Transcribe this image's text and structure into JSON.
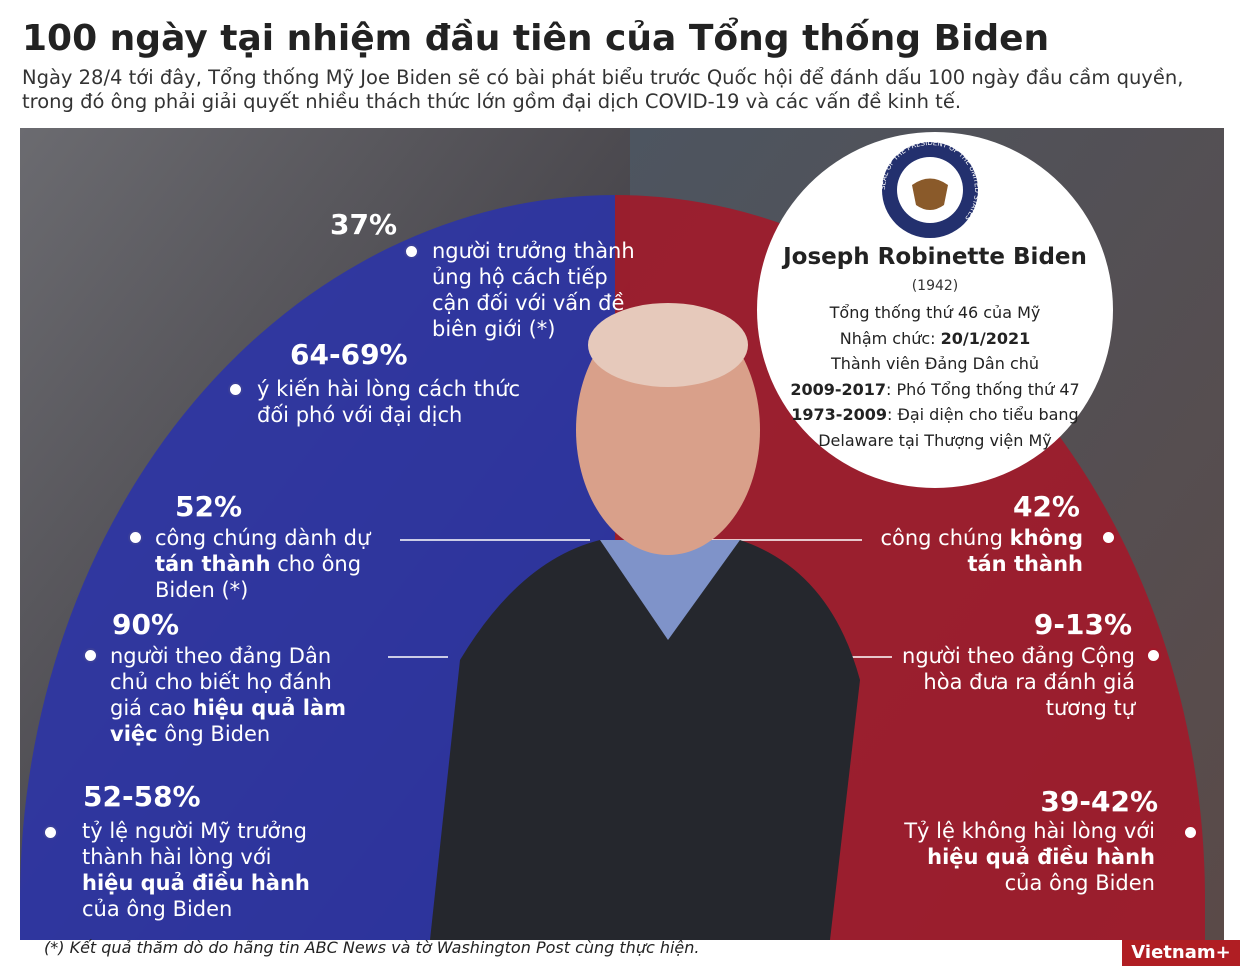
{
  "header": {
    "title": "100 ngày tại nhiệm đầu tiên của Tổng thống Biden",
    "intro": "Ngày 28/4 tới đây, Tổng thống Mỹ Joe Biden sẽ có bài phát biểu trước Quốc hội để đánh dấu 100 ngày đầu cầm quyền, trong đó ông phải giải quyết nhiều thách thức lớn gồm đại dịch COVID-19 và các vấn đề kinh tế."
  },
  "left_items": [
    {
      "value": "37%",
      "parts": [
        {
          "text": "người trưởng thành ủng hộ cách tiếp cận đối với vấn đề biên giới (*)"
        }
      ]
    },
    {
      "value": "64-69%",
      "parts": [
        {
          "text": "ý kiến hài lòng cách thức đối phó với đại dịch"
        }
      ]
    },
    {
      "value": "52%",
      "parts": [
        {
          "text": "công chúng dành dự "
        },
        {
          "text": "tán thành",
          "bold": true
        },
        {
          "text": " cho ông Biden (*)"
        }
      ]
    },
    {
      "value": "90%",
      "parts": [
        {
          "text": "người theo đảng Dân chủ cho biết họ đánh giá cao "
        },
        {
          "text": "hiệu quả làm việc",
          "bold": true
        },
        {
          "text": " ông Biden"
        }
      ]
    },
    {
      "value": "52-58%",
      "parts": [
        {
          "text": "tỷ lệ người Mỹ trưởng thành hài lòng với "
        },
        {
          "text": "hiệu quả điều hành",
          "bold": true
        },
        {
          "text": " của ông Biden"
        }
      ]
    }
  ],
  "right_items": [
    {
      "value": "42%",
      "parts": [
        {
          "text": "công chúng "
        },
        {
          "text": "không tán thành",
          "bold": true
        }
      ]
    },
    {
      "value": "9-13%",
      "parts": [
        {
          "text": "người theo đảng Cộng hòa đưa ra đánh giá tương tự"
        }
      ]
    },
    {
      "value": "39-42%",
      "parts": [
        {
          "text": "Tỷ lệ không hài lòng với "
        },
        {
          "text": "hiệu quả điều hành",
          "bold": true
        },
        {
          "text": " của ông Biden"
        }
      ]
    }
  ],
  "profile": {
    "seal_text": "SEAL OF THE PRESIDENT OF THE UNITED STATES",
    "name": "Joseph Robinette Biden",
    "born": "(1942)",
    "lines": [
      [
        {
          "text": "Tổng thống thứ 46 của Mỹ"
        }
      ],
      [
        {
          "text": "Nhậm chức: "
        },
        {
          "text": "20/1/2021",
          "bold": true
        }
      ],
      [
        {
          "text": "Thành viên Đảng Dân chủ"
        }
      ],
      [
        {
          "text": "2009-2017",
          "bold": true
        },
        {
          "text": ": Phó Tổng thống thứ 47"
        }
      ],
      [
        {
          "text": "1973-2009",
          "bold": true
        },
        {
          "text": ": Đại diện cho tiểu bang Delaware tại Thượng viện Mỹ"
        }
      ]
    ]
  },
  "footnote": "(*)  Kết quả thăm dò do hãng tin ABC News và tờ Washington Post cùng thực hiện.",
  "logo": "Vietnam+"
}
